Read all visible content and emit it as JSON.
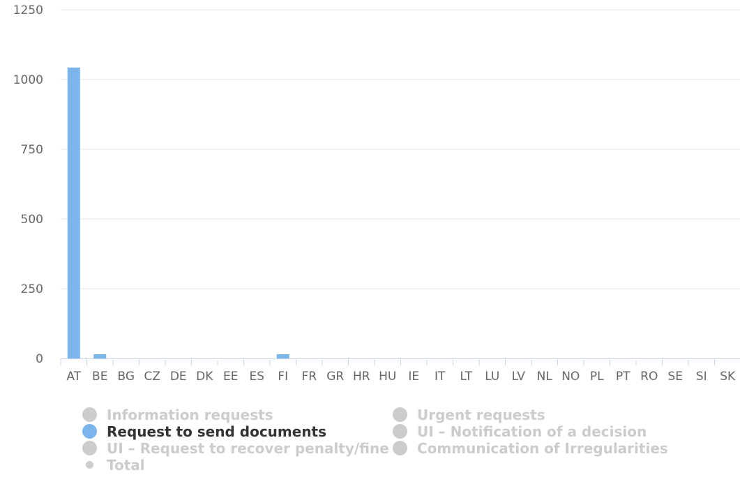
{
  "chart_data": {
    "type": "bar",
    "categories": [
      "AT",
      "BE",
      "BG",
      "CZ",
      "DE",
      "DK",
      "EE",
      "ES",
      "FI",
      "FR",
      "GR",
      "HR",
      "HU",
      "IE",
      "IT",
      "LT",
      "LU",
      "LV",
      "NL",
      "NO",
      "PL",
      "PT",
      "RO",
      "SE",
      "SI",
      "SK"
    ],
    "series": [
      {
        "name": "Request to send documents",
        "values": [
          1043,
          15,
          0,
          0,
          0,
          0,
          0,
          0,
          15,
          0,
          0,
          0,
          0,
          0,
          0,
          0,
          0,
          0,
          0,
          0,
          0,
          0,
          0,
          0,
          0,
          0
        ]
      }
    ],
    "ylim": [
      0,
      1250
    ],
    "yticks": [
      0,
      250,
      500,
      750,
      1000,
      1250
    ],
    "grid": true,
    "legend_position": "bottom",
    "colors": {
      "bar": "#7cb5ec",
      "grid": "#e6e6e6",
      "axis": "#ccd6eb",
      "inactive": "#cccccc"
    }
  },
  "legend": {
    "items": [
      {
        "label": "Information requests",
        "active": false
      },
      {
        "label": "Urgent requests",
        "active": false
      },
      {
        "label": "Request to send documents",
        "active": true
      },
      {
        "label": "UI – Notification of a decision",
        "active": false
      },
      {
        "label": "UI – Request to recover penalty/fine",
        "active": false
      },
      {
        "label": "Communication of Irregularities",
        "active": false
      },
      {
        "label": "Total",
        "active": false
      }
    ]
  }
}
